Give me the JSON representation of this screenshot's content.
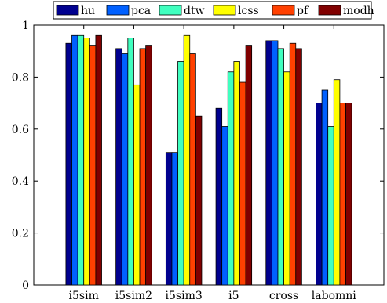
{
  "chart_data": {
    "type": "bar",
    "title": "",
    "xlabel": "",
    "ylabel": "",
    "categories": [
      "i5sim",
      "i5sim2",
      "i5sim3",
      "i5",
      "cross",
      "labomni"
    ],
    "ylim": [
      0,
      1
    ],
    "yticks": [
      "0",
      "0.2",
      "0.4",
      "0.6",
      "0.8",
      "1"
    ],
    "grid": false,
    "legend_position": "top",
    "series": [
      {
        "name": "hu",
        "color": "#00008f",
        "values": [
          0.93,
          0.91,
          0.51,
          0.68,
          0.94,
          0.7
        ]
      },
      {
        "name": "pca",
        "color": "#0060ff",
        "values": [
          0.96,
          0.89,
          0.51,
          0.61,
          0.94,
          0.75
        ]
      },
      {
        "name": "dtw",
        "color": "#40ffbf",
        "values": [
          0.96,
          0.95,
          0.86,
          0.82,
          0.91,
          0.61
        ]
      },
      {
        "name": "lcss",
        "color": "#ffff00",
        "values": [
          0.95,
          0.77,
          0.96,
          0.86,
          0.82,
          0.79
        ]
      },
      {
        "name": "pf",
        "color": "#ff4000",
        "values": [
          0.92,
          0.91,
          0.89,
          0.78,
          0.93,
          0.7
        ]
      },
      {
        "name": "modh",
        "color": "#800000",
        "values": [
          0.96,
          0.92,
          0.65,
          0.92,
          0.91,
          0.7
        ]
      }
    ]
  }
}
